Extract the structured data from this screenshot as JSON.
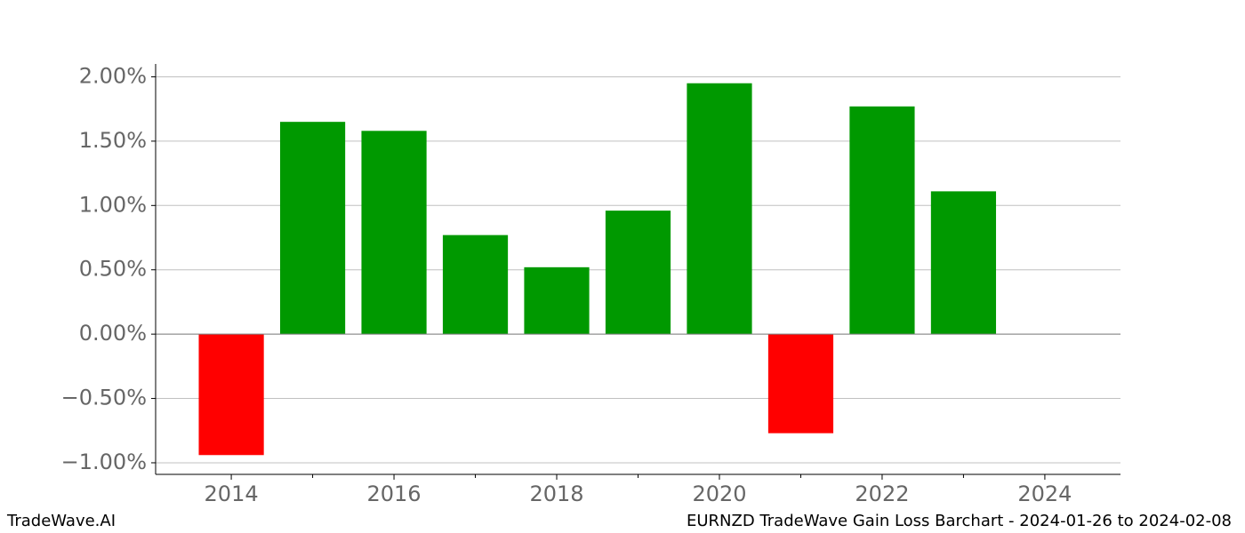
{
  "chart_data": {
    "type": "bar",
    "title": "EURNZD TradeWave Gain Loss Barchart - 2024-01-26 to 2024-02-08",
    "watermark": "TradeWave.AI",
    "x": [
      2014,
      2015,
      2016,
      2017,
      2018,
      2019,
      2020,
      2021,
      2022,
      2023
    ],
    "values": [
      -0.94,
      1.65,
      1.58,
      0.77,
      0.52,
      0.96,
      1.95,
      -0.77,
      1.77,
      1.11
    ],
    "positive_color": "#009900",
    "negative_color": "#ff0000",
    "xlim": [
      2013.07,
      2024.93
    ],
    "xticks": [
      2014,
      2016,
      2018,
      2020,
      2022,
      2024
    ],
    "xminorticks": [
      2015,
      2017,
      2019,
      2021,
      2023
    ],
    "ylim": [
      -1.09,
      2.1
    ],
    "yticks": [
      {
        "value": -1,
        "label": "−1.00%"
      },
      {
        "value": -0.5,
        "label": "−0.50%"
      },
      {
        "value": 0,
        "label": "0.00%"
      },
      {
        "value": 0.5,
        "label": "0.50%"
      },
      {
        "value": 1,
        "label": "1.00%"
      },
      {
        "value": 1.5,
        "label": "1.50%"
      },
      {
        "value": 2,
        "label": "2.00%"
      }
    ],
    "grid": true
  }
}
